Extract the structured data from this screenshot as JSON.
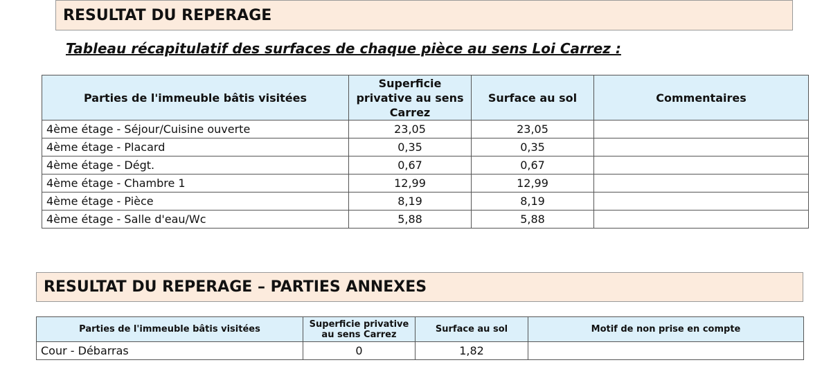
{
  "section1": {
    "title": "RESULTAT DU REPERAGE",
    "subtitle": "Tableau récapitulatif des surfaces de chaque pièce au sens Loi Carrez :",
    "table": {
      "headers": [
        "Parties de l'immeuble bâtis visitées",
        "Superficie privative au sens Carrez",
        "Surface au sol",
        "Commentaires"
      ],
      "rows": [
        [
          "4ème étage - Séjour/Cuisine ouverte",
          "23,05",
          "23,05",
          ""
        ],
        [
          "4ème étage - Placard",
          "0,35",
          "0,35",
          ""
        ],
        [
          "4ème étage - Dégt.",
          "0,67",
          "0,67",
          ""
        ],
        [
          "4ème étage - Chambre 1",
          "12,99",
          "12,99",
          ""
        ],
        [
          "4ème étage - Pièce",
          "8,19",
          "8,19",
          ""
        ],
        [
          "4ème étage - Salle d'eau/Wc",
          "5,88",
          "5,88",
          ""
        ]
      ]
    }
  },
  "section2": {
    "title": "RESULTAT DU REPERAGE – PARTIES ANNEXES",
    "table": {
      "headers": [
        "Parties de l'immeuble bâtis visitées",
        "Superficie privative au sens Carrez",
        "Surface au sol",
        "Motif de non prise en compte"
      ],
      "rows": [
        [
          "Cour - Débarras",
          "0",
          "1,82",
          ""
        ]
      ]
    }
  }
}
